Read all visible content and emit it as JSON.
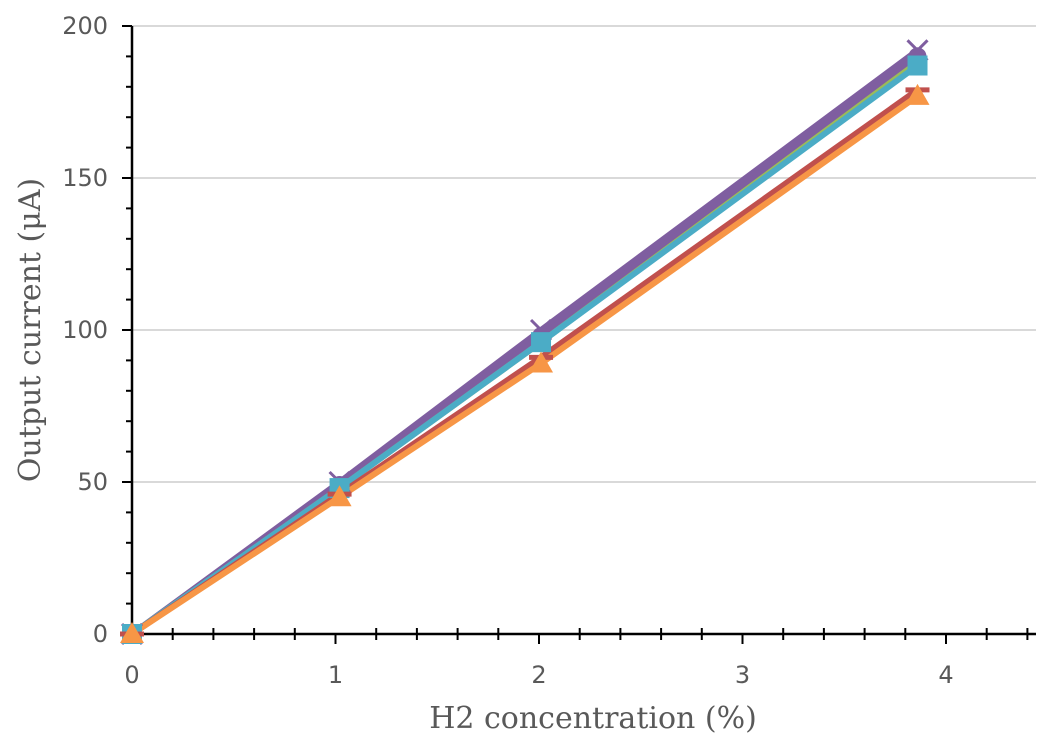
{
  "chart_data": {
    "type": "line",
    "title": "",
    "xlabel": "H2 concentration (%)",
    "ylabel": "Output current (μA)",
    "xlim": [
      0,
      4.4
    ],
    "ylim": [
      0,
      200
    ],
    "x_ticks": [
      "0",
      "1",
      "2",
      "3",
      "4"
    ],
    "y_ticks": [
      "0",
      "50",
      "100",
      "150",
      "200"
    ],
    "grid": "horizontal",
    "legend": "none",
    "x": [
      0,
      1.02,
      2.01,
      3.86
    ],
    "series": [
      {
        "marker": "x",
        "color": "#7f5ea0",
        "values": [
          0,
          50,
          100,
          192
        ]
      },
      {
        "marker": "circle",
        "color": "#7f5ea0",
        "values": [
          0,
          49,
          98,
          190
        ]
      },
      {
        "marker": "line",
        "color": "#9bbb59",
        "values": [
          0,
          48,
          96,
          188
        ]
      },
      {
        "marker": "square",
        "color": "#4bacc6",
        "values": [
          0,
          48,
          96,
          187
        ]
      },
      {
        "marker": "dash",
        "color": "#c0504d",
        "values": [
          0,
          46,
          91,
          179
        ]
      },
      {
        "marker": "triangle",
        "color": "#f79646",
        "values": [
          0,
          45,
          89,
          177
        ]
      }
    ]
  }
}
